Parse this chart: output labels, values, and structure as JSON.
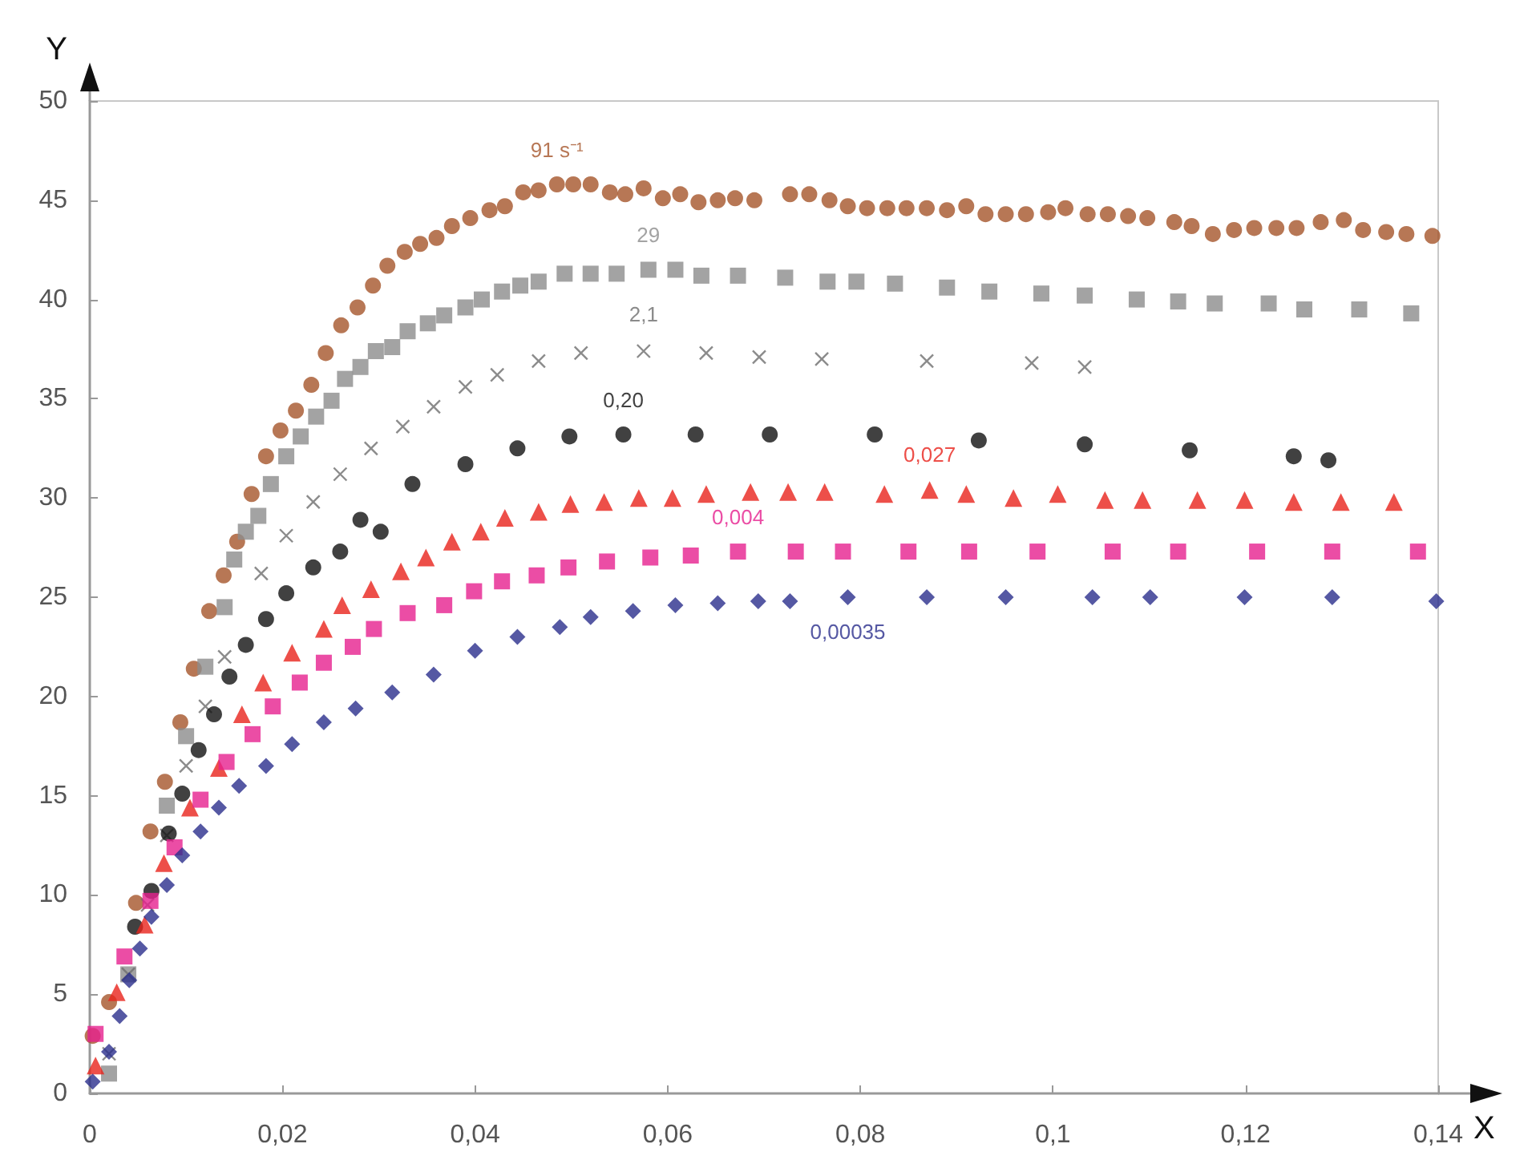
{
  "chart_data": {
    "type": "scatter",
    "xlabel": "X",
    "ylabel": "Y",
    "xlim": [
      0,
      0.14
    ],
    "ylim": [
      0,
      50
    ],
    "xticks": [
      0,
      {
        "value": 0.02,
        "label": "0,02"
      },
      {
        "value": 0.04,
        "label": "0,04"
      },
      {
        "value": 0.06,
        "label": "0,06"
      },
      {
        "value": 0.08,
        "label": "0,08"
      },
      {
        "value": 0.1,
        "label": "0,1"
      },
      {
        "value": 0.12,
        "label": "0,12"
      },
      {
        "value": 0.14,
        "label": "0,14"
      }
    ],
    "yticks": [
      0,
      5,
      10,
      15,
      20,
      25,
      30,
      35,
      40,
      45,
      50
    ],
    "grid": false,
    "legend": false,
    "series": [
      {
        "name": "91 s⁻¹",
        "color": "#a5552a",
        "marker": "circle",
        "x": [
          0.0003,
          0.002,
          0.0048,
          0.0063,
          0.0078,
          0.0094,
          0.0108,
          0.0124,
          0.0139,
          0.0153,
          0.0168,
          0.0183,
          0.0198,
          0.0214,
          0.023,
          0.0245,
          0.0261,
          0.0278,
          0.0294,
          0.0309,
          0.0327,
          0.0343,
          0.036,
          0.0376,
          0.0395,
          0.0415,
          0.0431,
          0.045,
          0.0466,
          0.0485,
          0.0502,
          0.052,
          0.054,
          0.0556,
          0.0575,
          0.0595,
          0.0613,
          0.0632,
          0.0652,
          0.067,
          0.069,
          0.0727,
          0.0747,
          0.0768,
          0.0787,
          0.0807,
          0.0828,
          0.0848,
          0.0869,
          0.089,
          0.091,
          0.093,
          0.0951,
          0.0972,
          0.0995,
          0.1013,
          0.1036,
          0.1057,
          0.1078,
          0.1098,
          0.1126,
          0.1144,
          0.1166,
          0.1188,
          0.1209,
          0.1232,
          0.1253,
          0.1278,
          0.1302,
          0.1322,
          0.1346,
          0.1367,
          0.1394
        ],
        "values": [
          2.9,
          4.6,
          9.6,
          13.2,
          15.7,
          18.7,
          21.4,
          24.3,
          26.1,
          27.8,
          30.2,
          32.1,
          33.4,
          34.4,
          35.7,
          37.3,
          38.7,
          39.6,
          40.7,
          41.7,
          42.4,
          42.8,
          43.1,
          43.7,
          44.1,
          44.5,
          44.7,
          45.4,
          45.5,
          45.8,
          45.8,
          45.8,
          45.4,
          45.3,
          45.6,
          45.1,
          45.3,
          44.9,
          45.0,
          45.1,
          45.0,
          45.3,
          45.3,
          45.0,
          44.7,
          44.6,
          44.6,
          44.6,
          44.6,
          44.5,
          44.7,
          44.3,
          44.3,
          44.3,
          44.4,
          44.6,
          44.3,
          44.3,
          44.2,
          44.1,
          43.9,
          43.7,
          43.3,
          43.5,
          43.6,
          43.6,
          43.6,
          43.9,
          44.0,
          43.5,
          43.4,
          43.3,
          43.2
        ]
      },
      {
        "name": "29",
        "color": "#8c8c8c",
        "marker": "square",
        "x": [
          0.002,
          0.004,
          0.008,
          0.01,
          0.012,
          0.014,
          0.015,
          0.0162,
          0.0175,
          0.0188,
          0.0204,
          0.0219,
          0.0235,
          0.0251,
          0.0265,
          0.0281,
          0.0297,
          0.0314,
          0.033,
          0.0351,
          0.0368,
          0.039,
          0.0407,
          0.0428,
          0.0447,
          0.0466,
          0.0493,
          0.052,
          0.0547,
          0.058,
          0.0608,
          0.0635,
          0.0673,
          0.0722,
          0.0766,
          0.0796,
          0.0836,
          0.089,
          0.0934,
          0.0988,
          0.1033,
          0.1087,
          0.113,
          0.1168,
          0.1224,
          0.1261,
          0.1318,
          0.1372
        ],
        "values": [
          1.0,
          6.0,
          14.5,
          18.0,
          21.5,
          24.5,
          26.9,
          28.3,
          29.1,
          30.7,
          32.1,
          33.1,
          34.1,
          34.9,
          36.0,
          36.6,
          37.4,
          37.6,
          38.4,
          38.8,
          39.2,
          39.6,
          40.0,
          40.4,
          40.7,
          40.9,
          41.3,
          41.3,
          41.3,
          41.5,
          41.5,
          41.2,
          41.2,
          41.1,
          40.9,
          40.9,
          40.8,
          40.6,
          40.4,
          40.3,
          40.2,
          40.0,
          39.9,
          39.8,
          39.8,
          39.5,
          39.5,
          39.3
        ]
      },
      {
        "name": "2,1",
        "color": "#6e6e6e",
        "marker": "cross",
        "x": [
          0.002,
          0.004,
          0.006,
          0.008,
          0.01,
          0.012,
          0.014,
          0.0178,
          0.0204,
          0.0232,
          0.026,
          0.0292,
          0.0325,
          0.0357,
          0.039,
          0.0423,
          0.0466,
          0.051,
          0.0575,
          0.064,
          0.0695,
          0.076,
          0.0869,
          0.0978,
          0.1033
        ],
        "values": [
          2.0,
          6.0,
          9.5,
          13.0,
          16.5,
          19.5,
          22.0,
          26.2,
          28.1,
          29.8,
          31.2,
          32.5,
          33.6,
          34.6,
          35.6,
          36.2,
          36.9,
          37.3,
          37.4,
          37.3,
          37.1,
          37.0,
          36.9,
          36.8,
          36.6
        ]
      },
      {
        "name": "0,20",
        "color": "#111111",
        "marker": "circle",
        "x": [
          0.0047,
          0.0064,
          0.0082,
          0.0096,
          0.0113,
          0.0129,
          0.0145,
          0.0162,
          0.0183,
          0.0204,
          0.0232,
          0.026,
          0.0281,
          0.0302,
          0.0335,
          0.039,
          0.0444,
          0.0498,
          0.0554,
          0.0629,
          0.0706,
          0.0815,
          0.0923,
          0.1033,
          0.1142,
          0.125,
          0.1286
        ],
        "values": [
          8.4,
          10.2,
          13.1,
          15.1,
          17.3,
          19.1,
          21.0,
          22.6,
          23.9,
          25.2,
          26.5,
          27.3,
          28.9,
          28.3,
          30.7,
          31.7,
          32.5,
          33.1,
          33.2,
          33.2,
          33.2,
          33.2,
          32.9,
          32.7,
          32.4,
          32.1,
          31.9
        ]
      },
      {
        "name": "0,027",
        "color": "#e8231c",
        "marker": "triangle",
        "x": [
          0.0006,
          0.0028,
          0.0057,
          0.0077,
          0.0104,
          0.0134,
          0.0158,
          0.018,
          0.021,
          0.0243,
          0.0262,
          0.0292,
          0.0323,
          0.0349,
          0.0376,
          0.0406,
          0.0431,
          0.0466,
          0.0499,
          0.0534,
          0.057,
          0.0605,
          0.064,
          0.0686,
          0.0725,
          0.0763,
          0.0825,
          0.0872,
          0.091,
          0.0959,
          0.1005,
          0.1054,
          0.1093,
          0.115,
          0.1199,
          0.125,
          0.1299,
          0.1354
        ],
        "values": [
          1.4,
          5.1,
          8.5,
          11.6,
          14.4,
          16.4,
          19.1,
          20.7,
          22.2,
          23.4,
          24.6,
          25.4,
          26.3,
          27.0,
          27.8,
          28.3,
          29.0,
          29.3,
          29.7,
          29.8,
          30.0,
          30.0,
          30.2,
          30.3,
          30.3,
          30.3,
          30.2,
          30.4,
          30.2,
          30.0,
          30.2,
          29.9,
          29.9,
          29.9,
          29.9,
          29.8,
          29.8,
          29.8
        ]
      },
      {
        "name": "0,004",
        "color": "#e6208f",
        "marker": "square",
        "x": [
          0.0006,
          0.0036,
          0.0063,
          0.0088,
          0.0115,
          0.0142,
          0.0169,
          0.019,
          0.0218,
          0.0243,
          0.0273,
          0.0295,
          0.033,
          0.0368,
          0.0399,
          0.0428,
          0.0464,
          0.0497,
          0.0537,
          0.0582,
          0.0624,
          0.0673,
          0.0733,
          0.0782,
          0.085,
          0.0913,
          0.0984,
          0.1062,
          0.113,
          0.1212,
          0.129,
          0.1379
        ],
        "values": [
          3.0,
          6.9,
          9.7,
          12.4,
          14.8,
          16.7,
          18.1,
          19.5,
          20.7,
          21.7,
          22.5,
          23.4,
          24.2,
          24.6,
          25.3,
          25.8,
          26.1,
          26.5,
          26.8,
          27.0,
          27.1,
          27.3,
          27.3,
          27.3,
          27.3,
          27.3,
          27.3,
          27.3,
          27.3,
          27.3,
          27.3,
          27.3
        ]
      },
      {
        "name": "0,00035",
        "color": "#2b2e8c",
        "marker": "diamond",
        "x": [
          0.0003,
          0.002,
          0.0031,
          0.0041,
          0.0052,
          0.0064,
          0.008,
          0.0096,
          0.0115,
          0.0134,
          0.0155,
          0.0183,
          0.021,
          0.0243,
          0.0276,
          0.0314,
          0.0357,
          0.04,
          0.0444,
          0.0488,
          0.052,
          0.0564,
          0.0608,
          0.0652,
          0.0694,
          0.0727,
          0.0787,
          0.0869,
          0.0951,
          0.1041,
          0.1101,
          0.1199,
          0.129,
          0.1398
        ],
        "values": [
          0.6,
          2.1,
          3.9,
          5.7,
          7.3,
          8.9,
          10.5,
          12.0,
          13.2,
          14.4,
          15.5,
          16.5,
          17.6,
          18.7,
          19.4,
          20.2,
          21.1,
          22.3,
          23.0,
          23.5,
          24.0,
          24.3,
          24.6,
          24.7,
          24.8,
          24.8,
          25.0,
          25.0,
          25.0,
          25.0,
          25.0,
          25.0,
          25.0,
          24.8
        ]
      }
    ]
  }
}
